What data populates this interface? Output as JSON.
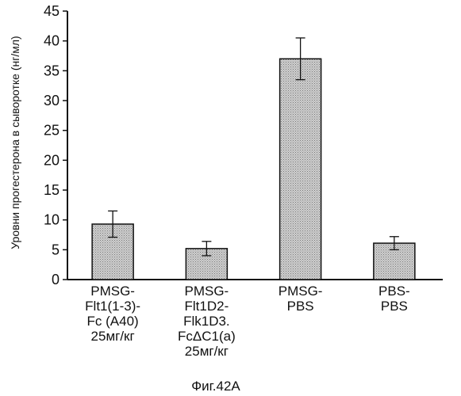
{
  "chart_data": {
    "type": "bar",
    "categories": [
      [
        "PMSG-",
        "Flt1(1-3)-",
        "Fc (A40)",
        "25мг/кг"
      ],
      [
        "PMSG-",
        "Flt1D2-",
        "Flk1D3.",
        "FcΔC1(a)",
        "25мг/кг"
      ],
      [
        "PMSG-",
        "PBS"
      ],
      [
        "PBS-",
        "PBS"
      ]
    ],
    "values": [
      9.3,
      5.2,
      37.0,
      6.1
    ],
    "errors": [
      2.2,
      1.2,
      3.5,
      1.1
    ],
    "ylabel": "Уровни прогестерона в сыворотке (нг/мл)",
    "xlabel": "",
    "ylim": [
      0,
      45
    ],
    "yticks": [
      0,
      5,
      10,
      15,
      20,
      25,
      30,
      35,
      40,
      45
    ],
    "bar_fill": "#bdbdbd",
    "grid": false,
    "legend": false
  },
  "caption": "Фиг.42A"
}
